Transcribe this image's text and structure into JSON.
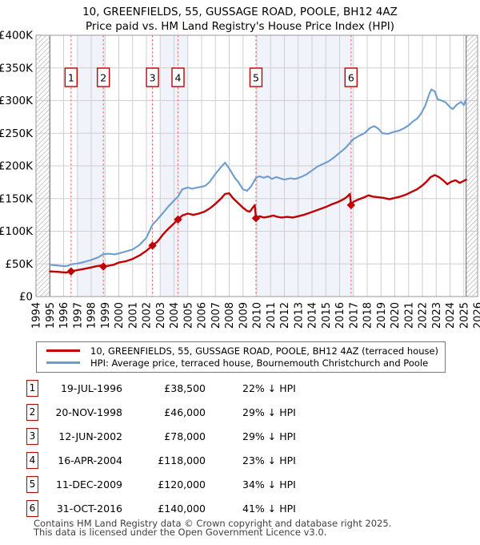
{
  "chart_data": {
    "type": "line",
    "title": "10, GREENFIELDS, 55, GUSSAGE ROAD, POOLE, BH12 4AZ",
    "subtitle": "Price paid vs. HM Land Registry's House Price Index (HPI)",
    "x_range": [
      1994,
      2026
    ],
    "y_range_gbp": [
      0,
      400000
    ],
    "y_tick_step_gbp": 50000,
    "y_tick_labels": [
      "£0",
      "£50K",
      "£100K",
      "£150K",
      "£200K",
      "£250K",
      "£300K",
      "£350K",
      "£400K"
    ],
    "x_tick_labels": [
      "1994",
      "1995",
      "1996",
      "1997",
      "1998",
      "1999",
      "2000",
      "2001",
      "2002",
      "2003",
      "2004",
      "2005",
      "2006",
      "2007",
      "2008",
      "2009",
      "2010",
      "2011",
      "2012",
      "2013",
      "2014",
      "2015",
      "2016",
      "2017",
      "2018",
      "2019",
      "2020",
      "2021",
      "2022",
      "2023",
      "2024",
      "2025",
      "2026"
    ],
    "grid": true,
    "legend_position": "below",
    "units": "series point values are GBP thousands; x is decimal year",
    "series": [
      {
        "id": "price-paid",
        "name": "10, GREENFIELDS, 55, GUSSAGE ROAD, POOLE, BH12 4AZ (terraced house)",
        "color": "#c00000",
        "width": 2.4,
        "points": [
          [
            1995.0,
            38.5
          ],
          [
            1995.3,
            38.2
          ],
          [
            1995.6,
            37.8
          ],
          [
            1995.9,
            37.2
          ],
          [
            1996.2,
            36.8
          ],
          [
            1996.54,
            38.5
          ],
          [
            1997.0,
            40.5
          ],
          [
            1997.5,
            42.5
          ],
          [
            1998.0,
            44.5
          ],
          [
            1998.4,
            46.5
          ],
          [
            1998.7,
            47.5
          ],
          [
            1998.88,
            46.0
          ],
          [
            1999.2,
            47.0
          ],
          [
            1999.6,
            48.5
          ],
          [
            2000.0,
            52.0
          ],
          [
            2000.5,
            54.0
          ],
          [
            2001.0,
            57.5
          ],
          [
            2001.5,
            63.0
          ],
          [
            2002.0,
            70.0
          ],
          [
            2002.44,
            78.0
          ],
          [
            2002.8,
            84.0
          ],
          [
            2003.2,
            95.0
          ],
          [
            2003.6,
            104.0
          ],
          [
            2004.0,
            112.0
          ],
          [
            2004.29,
            118.0
          ],
          [
            2004.6,
            124.0
          ],
          [
            2005.0,
            127.0
          ],
          [
            2005.4,
            125.0
          ],
          [
            2005.8,
            127.0
          ],
          [
            2006.2,
            130.0
          ],
          [
            2006.6,
            135.0
          ],
          [
            2007.0,
            142.0
          ],
          [
            2007.4,
            150.0
          ],
          [
            2007.7,
            157.0
          ],
          [
            2008.0,
            158.0
          ],
          [
            2008.3,
            150.0
          ],
          [
            2008.7,
            142.0
          ],
          [
            2009.0,
            136.0
          ],
          [
            2009.3,
            131.0
          ],
          [
            2009.5,
            130.0
          ],
          [
            2009.7,
            136.0
          ],
          [
            2009.85,
            140.0
          ],
          [
            2009.94,
            120.0
          ],
          [
            2010.2,
            123.0
          ],
          [
            2010.5,
            121.0
          ],
          [
            2010.8,
            122.0
          ],
          [
            2011.2,
            124.0
          ],
          [
            2011.5,
            122.0
          ],
          [
            2011.8,
            121.0
          ],
          [
            2012.2,
            122.0
          ],
          [
            2012.6,
            121.0
          ],
          [
            2013.0,
            123.0
          ],
          [
            2013.4,
            125.0
          ],
          [
            2013.8,
            128.0
          ],
          [
            2014.2,
            131.0
          ],
          [
            2014.6,
            134.0
          ],
          [
            2015.0,
            137.0
          ],
          [
            2015.4,
            141.0
          ],
          [
            2015.8,
            144.0
          ],
          [
            2016.2,
            148.0
          ],
          [
            2016.5,
            152.0
          ],
          [
            2016.75,
            157.0
          ],
          [
            2016.83,
            140.0
          ],
          [
            2017.0,
            145.0
          ],
          [
            2017.4,
            149.0
          ],
          [
            2017.8,
            152.0
          ],
          [
            2018.1,
            155.0
          ],
          [
            2018.4,
            153.0
          ],
          [
            2018.8,
            152.0
          ],
          [
            2019.2,
            151.0
          ],
          [
            2019.6,
            149.0
          ],
          [
            2020.0,
            151.0
          ],
          [
            2020.4,
            153.0
          ],
          [
            2020.8,
            156.0
          ],
          [
            2021.2,
            160.0
          ],
          [
            2021.6,
            164.0
          ],
          [
            2022.0,
            170.0
          ],
          [
            2022.3,
            176.0
          ],
          [
            2022.6,
            183.0
          ],
          [
            2022.9,
            186.0
          ],
          [
            2023.2,
            183.0
          ],
          [
            2023.5,
            178.0
          ],
          [
            2023.8,
            172.0
          ],
          [
            2024.1,
            176.0
          ],
          [
            2024.4,
            178.0
          ],
          [
            2024.7,
            174.0
          ],
          [
            2025.0,
            177.0
          ],
          [
            2025.17,
            179.0
          ]
        ]
      },
      {
        "id": "hpi",
        "name": "HPI: Average price, terraced house, Bournemouth Christchurch and Poole",
        "color": "#6d9cce",
        "width": 2.1,
        "points": [
          [
            1995.0,
            48.5
          ],
          [
            1995.4,
            48.0
          ],
          [
            1995.8,
            47.0
          ],
          [
            1996.1,
            46.5
          ],
          [
            1996.3,
            47.0
          ],
          [
            1996.54,
            49.4
          ],
          [
            1997.0,
            50.5
          ],
          [
            1997.5,
            53.0
          ],
          [
            1998.0,
            56.0
          ],
          [
            1998.5,
            60.0
          ],
          [
            1998.88,
            64.8
          ],
          [
            1999.3,
            65.5
          ],
          [
            1999.7,
            64.5
          ],
          [
            2000.0,
            66.0
          ],
          [
            2000.5,
            69.0
          ],
          [
            2001.0,
            72.0
          ],
          [
            2001.5,
            79.0
          ],
          [
            2002.0,
            90.0
          ],
          [
            2002.44,
            110.0
          ],
          [
            2002.8,
            118.0
          ],
          [
            2003.2,
            128.0
          ],
          [
            2003.6,
            138.0
          ],
          [
            2004.0,
            147.0
          ],
          [
            2004.29,
            153.0
          ],
          [
            2004.6,
            164.0
          ],
          [
            2005.0,
            167.0
          ],
          [
            2005.3,
            165.0
          ],
          [
            2005.7,
            167.0
          ],
          [
            2006.0,
            168.0
          ],
          [
            2006.3,
            170.0
          ],
          [
            2006.6,
            176.0
          ],
          [
            2007.0,
            188.0
          ],
          [
            2007.4,
            198.0
          ],
          [
            2007.7,
            205.0
          ],
          [
            2008.0,
            196.0
          ],
          [
            2008.4,
            182.0
          ],
          [
            2008.7,
            174.0
          ],
          [
            2009.0,
            164.0
          ],
          [
            2009.3,
            162.0
          ],
          [
            2009.6,
            169.0
          ],
          [
            2009.94,
            182.0
          ],
          [
            2010.2,
            184.0
          ],
          [
            2010.5,
            182.0
          ],
          [
            2010.8,
            184.0
          ],
          [
            2011.1,
            180.0
          ],
          [
            2011.4,
            183.0
          ],
          [
            2011.7,
            181.0
          ],
          [
            2012.0,
            179.0
          ],
          [
            2012.4,
            181.0
          ],
          [
            2012.8,
            180.0
          ],
          [
            2013.2,
            183.0
          ],
          [
            2013.6,
            187.0
          ],
          [
            2014.0,
            193.0
          ],
          [
            2014.4,
            199.0
          ],
          [
            2014.8,
            203.0
          ],
          [
            2015.2,
            207.0
          ],
          [
            2015.6,
            213.0
          ],
          [
            2016.0,
            220.0
          ],
          [
            2016.4,
            227.0
          ],
          [
            2016.83,
            237.0
          ],
          [
            2017.0,
            241.0
          ],
          [
            2017.4,
            246.0
          ],
          [
            2017.8,
            250.0
          ],
          [
            2018.2,
            258.0
          ],
          [
            2018.5,
            261.0
          ],
          [
            2018.8,
            257.0
          ],
          [
            2019.1,
            250.0
          ],
          [
            2019.5,
            249.0
          ],
          [
            2019.9,
            252.0
          ],
          [
            2020.3,
            254.0
          ],
          [
            2020.7,
            258.0
          ],
          [
            2021.0,
            262.0
          ],
          [
            2021.3,
            268.0
          ],
          [
            2021.6,
            272.0
          ],
          [
            2021.9,
            280.0
          ],
          [
            2022.2,
            292.0
          ],
          [
            2022.5,
            310.0
          ],
          [
            2022.65,
            317.0
          ],
          [
            2022.9,
            314.0
          ],
          [
            2023.1,
            302.0
          ],
          [
            2023.4,
            300.0
          ],
          [
            2023.7,
            297.0
          ],
          [
            2024.0,
            290.0
          ],
          [
            2024.2,
            287.0
          ],
          [
            2024.5,
            294.0
          ],
          [
            2024.8,
            298.0
          ],
          [
            2025.0,
            293.0
          ],
          [
            2025.17,
            302.0
          ]
        ]
      }
    ],
    "sales": [
      {
        "n": "1",
        "x": 1996.54,
        "price_gbp": 38500,
        "date": "19-JUL-1996",
        "price_label": "£38,500",
        "hpi_label": "22% ↓ HPI"
      },
      {
        "n": "2",
        "x": 1998.88,
        "price_gbp": 46000,
        "date": "20-NOV-1998",
        "price_label": "£46,000",
        "hpi_label": "29% ↓ HPI"
      },
      {
        "n": "3",
        "x": 2002.44,
        "price_gbp": 78000,
        "date": "12-JUN-2002",
        "price_label": "£78,000",
        "hpi_label": "29% ↓ HPI"
      },
      {
        "n": "4",
        "x": 2004.29,
        "price_gbp": 118000,
        "date": "16-APR-2004",
        "price_label": "£118,000",
        "hpi_label": "23% ↓ HPI"
      },
      {
        "n": "5",
        "x": 2009.94,
        "price_gbp": 120000,
        "date": "11-DEC-2009",
        "price_label": "£120,000",
        "hpi_label": "34% ↓ HPI"
      },
      {
        "n": "6",
        "x": 2016.83,
        "price_gbp": 140000,
        "date": "31-OCT-2016",
        "price_label": "£140,000",
        "hpi_label": "41% ↓ HPI"
      }
    ],
    "ownership_bands": [
      [
        1997,
        1999
      ],
      [
        2003,
        2005
      ],
      [
        2010,
        2017
      ]
    ],
    "hatch_regions": [
      [
        1994,
        1995
      ],
      [
        2025.17,
        2026
      ]
    ],
    "data_bounds": [
      1995,
      2025.17
    ],
    "colors": {
      "red": "#c00000",
      "blue": "#6d9cce",
      "dash": "#ee7777",
      "band": "#f0f3fa",
      "grid": "#cfcfcf",
      "hatch": "#c9c9c9",
      "border": "#999999",
      "bound": "#666666"
    }
  },
  "footer": {
    "line1": "Contains HM Land Registry data © Crown copyright and database right 2025.",
    "line2": "This data is licensed under the Open Government Licence v3.0."
  }
}
